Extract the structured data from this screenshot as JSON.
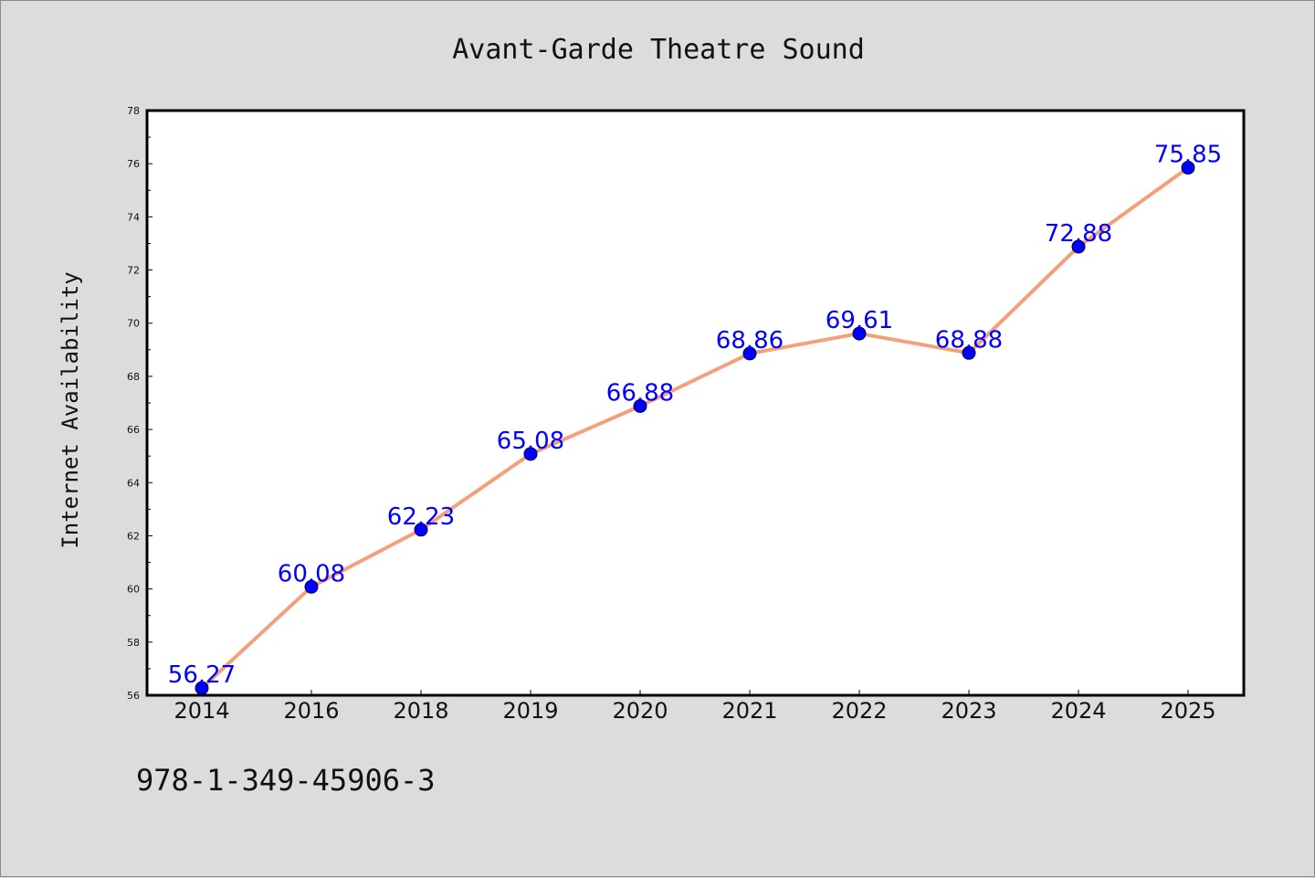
{
  "chart_data": {
    "type": "line",
    "title": "Avant-Garde Theatre Sound",
    "xlabel": "",
    "ylabel": "Internet Availability",
    "categories": [
      "2014",
      "2016",
      "2018",
      "2019",
      "2020",
      "2021",
      "2022",
      "2023",
      "2024",
      "2025"
    ],
    "series": [
      {
        "values": [
          56.27,
          60.08,
          62.23,
          65.08,
          66.88,
          68.86,
          69.61,
          68.88,
          72.88,
          75.85
        ],
        "data_labels": [
          "56.27",
          "60.08",
          "62.23",
          "65.08",
          "66.88",
          "68.86",
          "69.61",
          "68.88",
          "72.88",
          "75.85"
        ],
        "line_color": "#f4a07a",
        "marker_color": "#0000ff"
      }
    ],
    "ylim": [
      56,
      78
    ],
    "yticks": [
      56,
      58,
      60,
      62,
      64,
      66,
      68,
      70,
      72,
      74,
      76,
      78
    ],
    "grid": false,
    "legend": "none"
  },
  "footer": {
    "text": "978-1-349-45906-3"
  }
}
